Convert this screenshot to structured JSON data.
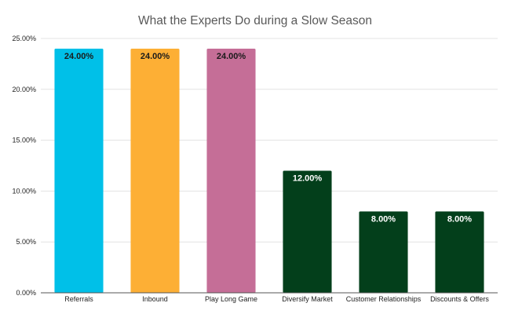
{
  "chart_data": {
    "type": "bar",
    "title": "What the Experts Do during a Slow Season",
    "xlabel": "",
    "ylabel": "",
    "ylim": [
      0,
      25
    ],
    "yticks": [
      0,
      5,
      10,
      15,
      20,
      25
    ],
    "ytick_labels": [
      "0.00%",
      "5.00%",
      "10.00%",
      "15.00%",
      "20.00%",
      "25.00%"
    ],
    "grid": true,
    "legend": "none",
    "categories": [
      "Referrals",
      "Inbound",
      "Play Long Game",
      "Diversify Market",
      "Customer Relationships",
      "Discounts & Offers"
    ],
    "values": [
      24,
      24,
      24,
      12,
      8,
      8
    ],
    "data_labels": [
      "24.00%",
      "24.00%",
      "24.00%",
      "12.00%",
      "8.00%",
      "8.00%"
    ],
    "colors": [
      "#00c0e8",
      "#fdaf35",
      "#c56e97",
      "#033f1b",
      "#033f1b",
      "#033f1b"
    ],
    "label_colors": [
      "#1a1a1a",
      "#1a1a1a",
      "#1a1a1a",
      "#ffffff",
      "#ffffff",
      "#ffffff"
    ]
  }
}
